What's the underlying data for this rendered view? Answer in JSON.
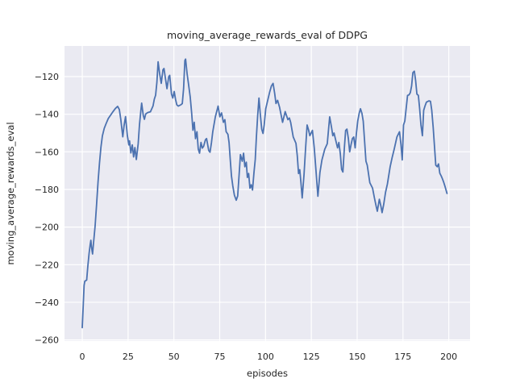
{
  "figure": {
    "title": "moving_average_rewards_eval of DDPG",
    "xlabel": "episodes",
    "ylabel": "moving_average_rewards_eval"
  },
  "chart_data": {
    "type": "line",
    "title": "moving_average_rewards_eval of DDPG",
    "xlabel": "episodes",
    "ylabel": "moving_average_rewards_eval",
    "x_ticks": [
      0,
      25,
      50,
      75,
      100,
      125,
      150,
      175,
      200
    ],
    "y_ticks": [
      -120,
      -140,
      -160,
      -180,
      -200,
      -220,
      -240,
      -260
    ],
    "xlim": [
      -9.7,
      211.6
    ],
    "ylim": [
      -260.6,
      -103.7
    ],
    "grid": true,
    "legend_position": "none",
    "colors": {
      "line": "#4c72b0",
      "axes_background": "#eaeaf2",
      "grid": "#ffffff",
      "figure_background": "#ffffff",
      "text": "#262626"
    },
    "series": [
      {
        "name": "moving_average_rewards_eval",
        "color": "#4c72b0",
        "x": [
          0,
          0.5,
          1,
          1.4,
          2.4,
          3,
          3.7,
          4.3,
          4.7,
          5.1,
          5.6,
          6.2,
          7,
          7.8,
          8.6,
          9.4,
          10.2,
          11,
          12,
          13,
          14.2,
          15.5,
          16.8,
          18,
          19.3,
          20.2,
          21,
          22.1,
          22.8,
          23.6,
          24.6,
          25.4,
          25.8,
          26.5,
          27.3,
          28,
          28.7,
          29.5,
          30.5,
          31.2,
          32,
          32.4,
          33.3,
          33.9,
          34.6,
          35.7,
          37.2,
          38.6,
          39.3,
          40,
          40.7,
          41.4,
          42.2,
          43.1,
          44,
          44.6,
          45.4,
          46.2,
          47.2,
          47.7,
          48.7,
          49.4,
          50.2,
          50.9,
          51.6,
          52.4,
          53.8,
          54.6,
          55.3,
          56,
          56.4,
          57.2,
          57.9,
          58.9,
          59.7,
          60.4,
          61.1,
          61.8,
          62.6,
          63.3,
          64,
          64.8,
          65.5,
          66.2,
          67.2,
          67.8,
          69,
          69.7,
          70.5,
          71.2,
          72.6,
          74.1,
          75.1,
          76,
          77,
          77.8,
          78.5,
          79.5,
          80.1,
          80.7,
          81.4,
          82.1,
          83,
          84,
          84.8,
          85.6,
          86.3,
          87.3,
          88,
          88.7,
          89.5,
          90.1,
          90.8,
          91.5,
          92.2,
          92.9,
          93.7,
          94.4,
          95,
          95.7,
          96.4,
          97.1,
          97.9,
          98.6,
          99.3,
          100.1,
          101.2,
          102.3,
          103.2,
          104.1,
          105,
          105.7,
          106.6,
          107.7,
          109.3,
          110.7,
          112.2,
          113,
          113.7,
          115.1,
          116.6,
          117.3,
          118,
          118.7,
          119.3,
          120,
          121,
          121.8,
          122.7,
          123.5,
          124.2,
          125,
          125.6,
          126.6,
          127.6,
          128.6,
          129.7,
          130.8,
          132.3,
          133.7,
          135,
          136,
          136.7,
          137.4,
          138.3,
          139.3,
          140,
          140.8,
          141.5,
          142.2,
          143,
          143.7,
          144.4,
          145.2,
          145.9,
          146.7,
          147.4,
          148.1,
          148.9,
          149.6,
          150.3,
          151.1,
          151.8,
          152.6,
          153.3,
          154,
          154.8,
          155.5,
          156.9,
          158.4,
          159.4,
          160.4,
          161,
          162.1,
          163,
          163.6,
          164.5,
          165.5,
          166.5,
          168,
          169.1,
          170.2,
          171.7,
          173.1,
          173.9,
          174.6,
          175.3,
          176,
          177.5,
          178.3,
          179,
          179.7,
          180.4,
          181.2,
          181.9,
          182.6,
          183.4,
          184.1,
          184.8,
          185.6,
          186.3,
          187,
          187.8,
          189.2,
          190,
          190.7,
          191.5,
          192.2,
          192.9,
          193.7,
          194.4,
          195.1,
          195.9,
          196.6,
          197.3,
          198,
          199
        ],
        "y": [
          -253.5,
          -242,
          -231,
          -228.8,
          -228.2,
          -221,
          -214,
          -209.5,
          -207,
          -211,
          -214.3,
          -208,
          -199.3,
          -188,
          -176,
          -166,
          -157.5,
          -151.5,
          -147.5,
          -145,
          -142.3,
          -140.4,
          -138.6,
          -137,
          -135.8,
          -137.5,
          -142.7,
          -152,
          -146,
          -141.3,
          -151.4,
          -156.3,
          -154.2,
          -160.6,
          -156.3,
          -162.7,
          -157.7,
          -164.1,
          -155.6,
          -145.6,
          -137.7,
          -134.1,
          -140.6,
          -142.7,
          -139.9,
          -139.1,
          -138.7,
          -135.6,
          -132,
          -129.9,
          -123,
          -112.1,
          -118.5,
          -123.6,
          -116.4,
          -115.7,
          -121,
          -126.4,
          -120,
          -119.3,
          -129.3,
          -131.4,
          -127.9,
          -132.1,
          -135,
          -135.7,
          -135,
          -134.3,
          -126.4,
          -111.4,
          -110.7,
          -118.6,
          -123.6,
          -130.7,
          -139.3,
          -148.5,
          -144.3,
          -153,
          -149.3,
          -158.5,
          -160.7,
          -155,
          -158,
          -157.1,
          -153.6,
          -152.9,
          -159.3,
          -160.2,
          -155,
          -149.3,
          -141.4,
          -135.7,
          -141.4,
          -139.3,
          -144.3,
          -142.9,
          -149.3,
          -150.7,
          -155,
          -163.6,
          -172.9,
          -178,
          -183,
          -185.7,
          -183.5,
          -172,
          -161.5,
          -165,
          -160.7,
          -167.9,
          -165.5,
          -173.6,
          -171.5,
          -179.3,
          -177.5,
          -180.3,
          -171,
          -164,
          -152.1,
          -140.7,
          -131.4,
          -139.3,
          -147.9,
          -150.2,
          -145.7,
          -137.1,
          -132.5,
          -128,
          -125,
          -123.6,
          -129,
          -134.3,
          -132.6,
          -136.4,
          -144.3,
          -138.6,
          -142.9,
          -142,
          -144.3,
          -152.1,
          -155.5,
          -162,
          -171.5,
          -169.5,
          -176,
          -184.5,
          -172,
          -159,
          -145.7,
          -148.5,
          -151.4,
          -149.8,
          -148.6,
          -158,
          -171,
          -183.6,
          -171,
          -164.3,
          -158.6,
          -155.7,
          -141.4,
          -147,
          -151.4,
          -150,
          -153.8,
          -157.9,
          -155,
          -161,
          -169.3,
          -170.7,
          -158,
          -148.6,
          -147.9,
          -153,
          -160,
          -156,
          -152.9,
          -152.1,
          -157.9,
          -150,
          -143.6,
          -139.5,
          -137.1,
          -139.5,
          -143.6,
          -153.6,
          -165,
          -167.1,
          -176.4,
          -179.3,
          -184.5,
          -189,
          -191.6,
          -185.2,
          -189,
          -192.3,
          -188,
          -181.5,
          -177.1,
          -167.9,
          -163,
          -158.6,
          -152.1,
          -149.3,
          -156,
          -164.3,
          -145.7,
          -143.6,
          -130,
          -129.7,
          -128.5,
          -125,
          -117.9,
          -117.1,
          -122.1,
          -129.3,
          -130,
          -137.1,
          -145.7,
          -151.4,
          -137.9,
          -135.7,
          -133.6,
          -132.9,
          -133.1,
          -137.9,
          -147.1,
          -157.1,
          -167.1,
          -167.9,
          -166.4,
          -171.4,
          -172.9,
          -174.5,
          -176.4,
          -178.6,
          -182.1
        ]
      }
    ]
  }
}
